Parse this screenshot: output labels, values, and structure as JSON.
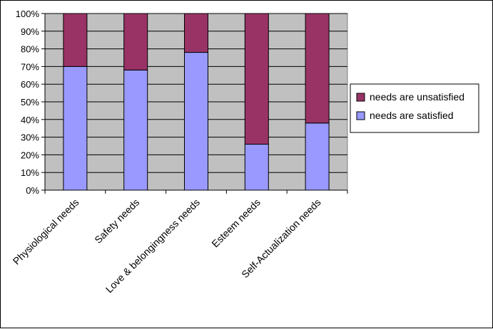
{
  "chart_data": {
    "type": "bar",
    "stacked": true,
    "categories": [
      "Physiological needs",
      "Safety needs",
      "Love & belongingness needs",
      "Esteem needs",
      "Self-Actualization needs"
    ],
    "series": [
      {
        "name": "needs are satisfied",
        "values": [
          70,
          68,
          78,
          26,
          38
        ],
        "color": "#9999ff"
      },
      {
        "name": "needs are unsatisfied",
        "values": [
          30,
          32,
          22,
          74,
          62
        ],
        "color": "#993366"
      }
    ],
    "y_ticks": [
      "0%",
      "10%",
      "20%",
      "30%",
      "40%",
      "50%",
      "60%",
      "70%",
      "80%",
      "90%",
      "100%"
    ],
    "ylim": [
      0,
      100
    ],
    "grid": true,
    "plot_background": "#c0c0c0",
    "legend": {
      "placement": "right",
      "entries": [
        "needs are unsatisfied",
        "needs are satisfied"
      ]
    }
  }
}
